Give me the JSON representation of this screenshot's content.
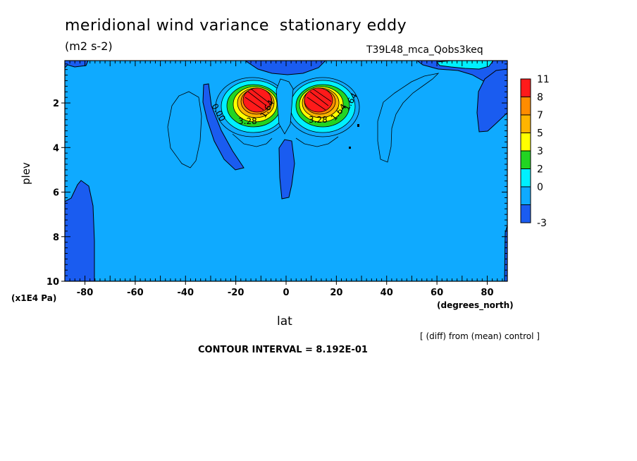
{
  "chart_data": {
    "type": "contour",
    "title": "meridional wind variance  stationary eddy",
    "units": "(m2 s-2)",
    "experiment": "T39L48_mca_Qobs3keq",
    "xlabel": "lat",
    "x_unit": "(degrees_north)",
    "ylabel": "plev",
    "y_unit": "(x1E4 Pa)",
    "xlim": [
      -88,
      88
    ],
    "ylim": [
      0.1,
      10
    ],
    "y_reversed": true,
    "x_ticks": [
      -80,
      -60,
      -40,
      -20,
      0,
      20,
      40,
      60,
      80
    ],
    "y_ticks": [
      2,
      4,
      6,
      8,
      10
    ],
    "colorbar": {
      "levels": [
        "11",
        "8",
        "7",
        "5",
        "3",
        "2",
        "0",
        "-3"
      ],
      "colors": [
        "#ff1a1a",
        "#ff8c00",
        "#ffb400",
        "#ffff00",
        "#22d422",
        "#00f0ff",
        "#0faaff",
        "#1a5cf0"
      ]
    },
    "contour_interval": "8.192E-01",
    "contour_labels": [
      "0.00",
      "1.64",
      "3.28",
      "1.64",
      "3.28",
      "1.64"
    ],
    "maxima": [
      {
        "lat": -13,
        "plev": 1.8,
        "value": 11
      },
      {
        "lat": 13,
        "plev": 1.8,
        "value": 11
      }
    ],
    "note": "[ (diff) from (mean) control ]",
    "contour_interval_text": "CONTOUR INTERVAL = 8.192E-01"
  },
  "colors": {
    "background": "#0faaff",
    "negative": "#1a5cf0",
    "outline": "#000000"
  }
}
